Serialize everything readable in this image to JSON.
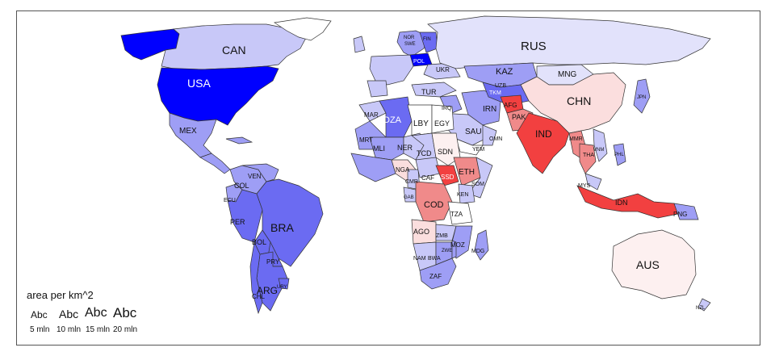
{
  "map": {
    "labels": {
      "usa": "USA",
      "can": "CAN",
      "mex": "MEX",
      "rus": "RUS",
      "chn": "CHN",
      "ind": "IND",
      "aus": "AUS",
      "bra": "BRA",
      "arg": "ARG",
      "per": "PER",
      "col": "COL",
      "ven": "VEN",
      "bol": "BOL",
      "pry": "PRY",
      "chl": "CHL",
      "ury": "URY",
      "ecu": "ECU",
      "kaz": "KAZ",
      "mng": "MNG",
      "irn": "IRN",
      "afg": "AFG",
      "pak": "PAK",
      "tur": "TUR",
      "sau": "SAU",
      "egy": "EGY",
      "lby": "LBY",
      "dza": "DZA",
      "mar": "MAR",
      "mli": "MLI",
      "ner": "NER",
      "tcd": "TCD",
      "sdn": "SDN",
      "eth": "ETH",
      "ssd": "SSD",
      "nga": "NGA",
      "caf": "CAF",
      "cod": "COD",
      "ago": "AGO",
      "tza": "TZA",
      "zmb": "ZMB",
      "moz": "MOZ",
      "nam": "NAM",
      "bwa": "BWA",
      "zaf": "ZAF",
      "mdg": "MDG",
      "ken": "KEN",
      "som": "SOM",
      "yem": "YEM",
      "omn": "OMN",
      "idn": "IDN",
      "png": "PNG",
      "mys": "MYS",
      "tha": "THA",
      "mmr": "MMR",
      "pol": "POL",
      "ukr": "UKR",
      "nor": "NOR",
      "swe": "SWE",
      "fin": "FIN",
      "uzb": "UZB",
      "tkm": "TKM",
      "irq": "IRQ",
      "mrt": "MRT",
      "cmr": "CMR",
      "gab": "GAB",
      "zwe": "ZWE",
      "nzl": "NZL",
      "jpn": "JPN",
      "vnm": "VNM",
      "phl": "PHL"
    },
    "colors": {
      "deep_blue": "#0000ff",
      "mid_blue": "#6b6bf2",
      "light_blue": "#9e9ef5",
      "pale_blue": "#c8c8f8",
      "paler_blue": "#e2e2fb",
      "red": "#f24040",
      "light_red": "#f08a8a",
      "pale_red": "#fbdede",
      "paler_red": "#fdf0f0",
      "border": "#333333"
    }
  },
  "legend": {
    "title": "area per km^2",
    "sample": "Abc",
    "values": [
      "5 mln",
      "10 mln",
      "15 mln",
      "20 mln"
    ]
  }
}
